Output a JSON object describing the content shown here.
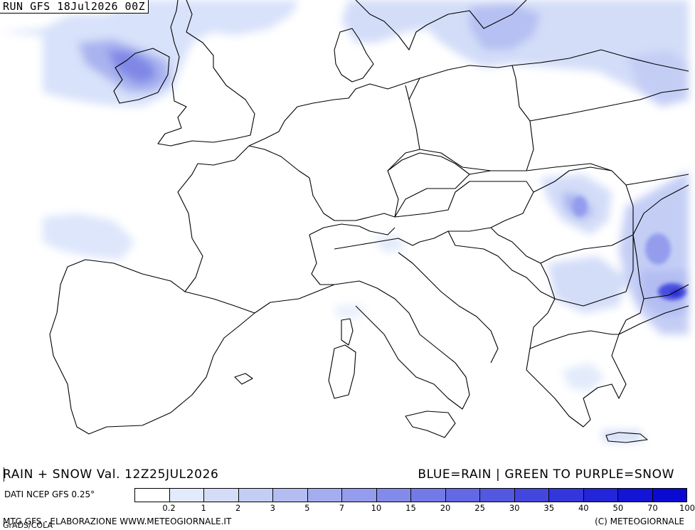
{
  "header": {
    "run_label": "RUN GFS 18Jul2026 00Z"
  },
  "title": {
    "left": "RAIN + SNOW Val. 12Z25JUL2026",
    "right": "BLUE=RAIN | GREEN TO PURPLE=SNOW"
  },
  "legend": {
    "source_label": "DATI NCEP GFS 0.25°",
    "colors": [
      "#ffffff",
      "#e2ebfb",
      "#d3ddf8",
      "#c4cef5",
      "#b3bdf2",
      "#a3adef",
      "#939ced",
      "#838bea",
      "#737ae7",
      "#6369e4",
      "#5358e1",
      "#4347de",
      "#3336db",
      "#2325d8",
      "#1314d5",
      "#0a0ad2"
    ],
    "ticks": [
      "0.2",
      "1",
      "2",
      "3",
      "5",
      "7",
      "10",
      "15",
      "20",
      "25",
      "30",
      "35",
      "40",
      "50",
      "70",
      "100"
    ]
  },
  "footer": {
    "left": "MTG GFS - ELABORAZIONE WWW.METEOGIORNALE.IT",
    "grads": "GrADS/COLA",
    "right": "(C) METEOGIORNALE"
  }
}
